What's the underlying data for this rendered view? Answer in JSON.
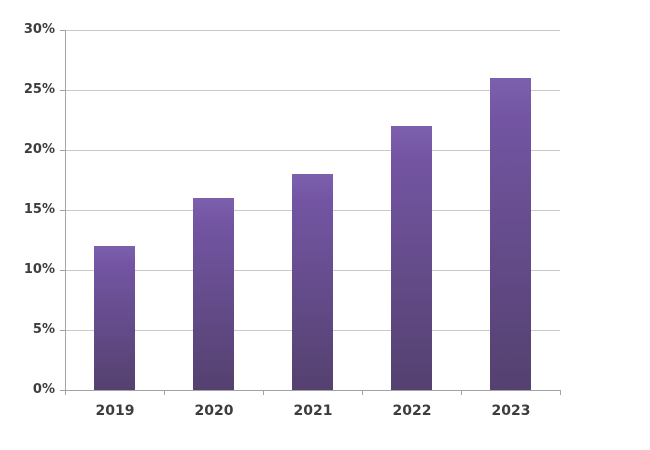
{
  "chart_data": {
    "type": "bar",
    "categories": [
      "2019",
      "2020",
      "2021",
      "2022",
      "2023"
    ],
    "values": [
      12,
      16,
      18,
      22,
      26
    ],
    "title": "",
    "xlabel": "",
    "ylabel": "",
    "ylim": [
      0,
      30
    ],
    "ytick_step": 5,
    "ytick_labels": [
      "0%",
      "5%",
      "10%",
      "15%",
      "20%",
      "25%",
      "30%"
    ],
    "grid": true,
    "legend": false,
    "colors": {
      "bar_gradient_top": "#7c60ae",
      "bar_gradient_mid": "#7355a3",
      "bar_gradient_bottom": "#54416f",
      "gridline": "#c9c9c9",
      "axis": "#a3a3a3",
      "label": "#3d3d3d",
      "background": "#ffffff"
    }
  }
}
